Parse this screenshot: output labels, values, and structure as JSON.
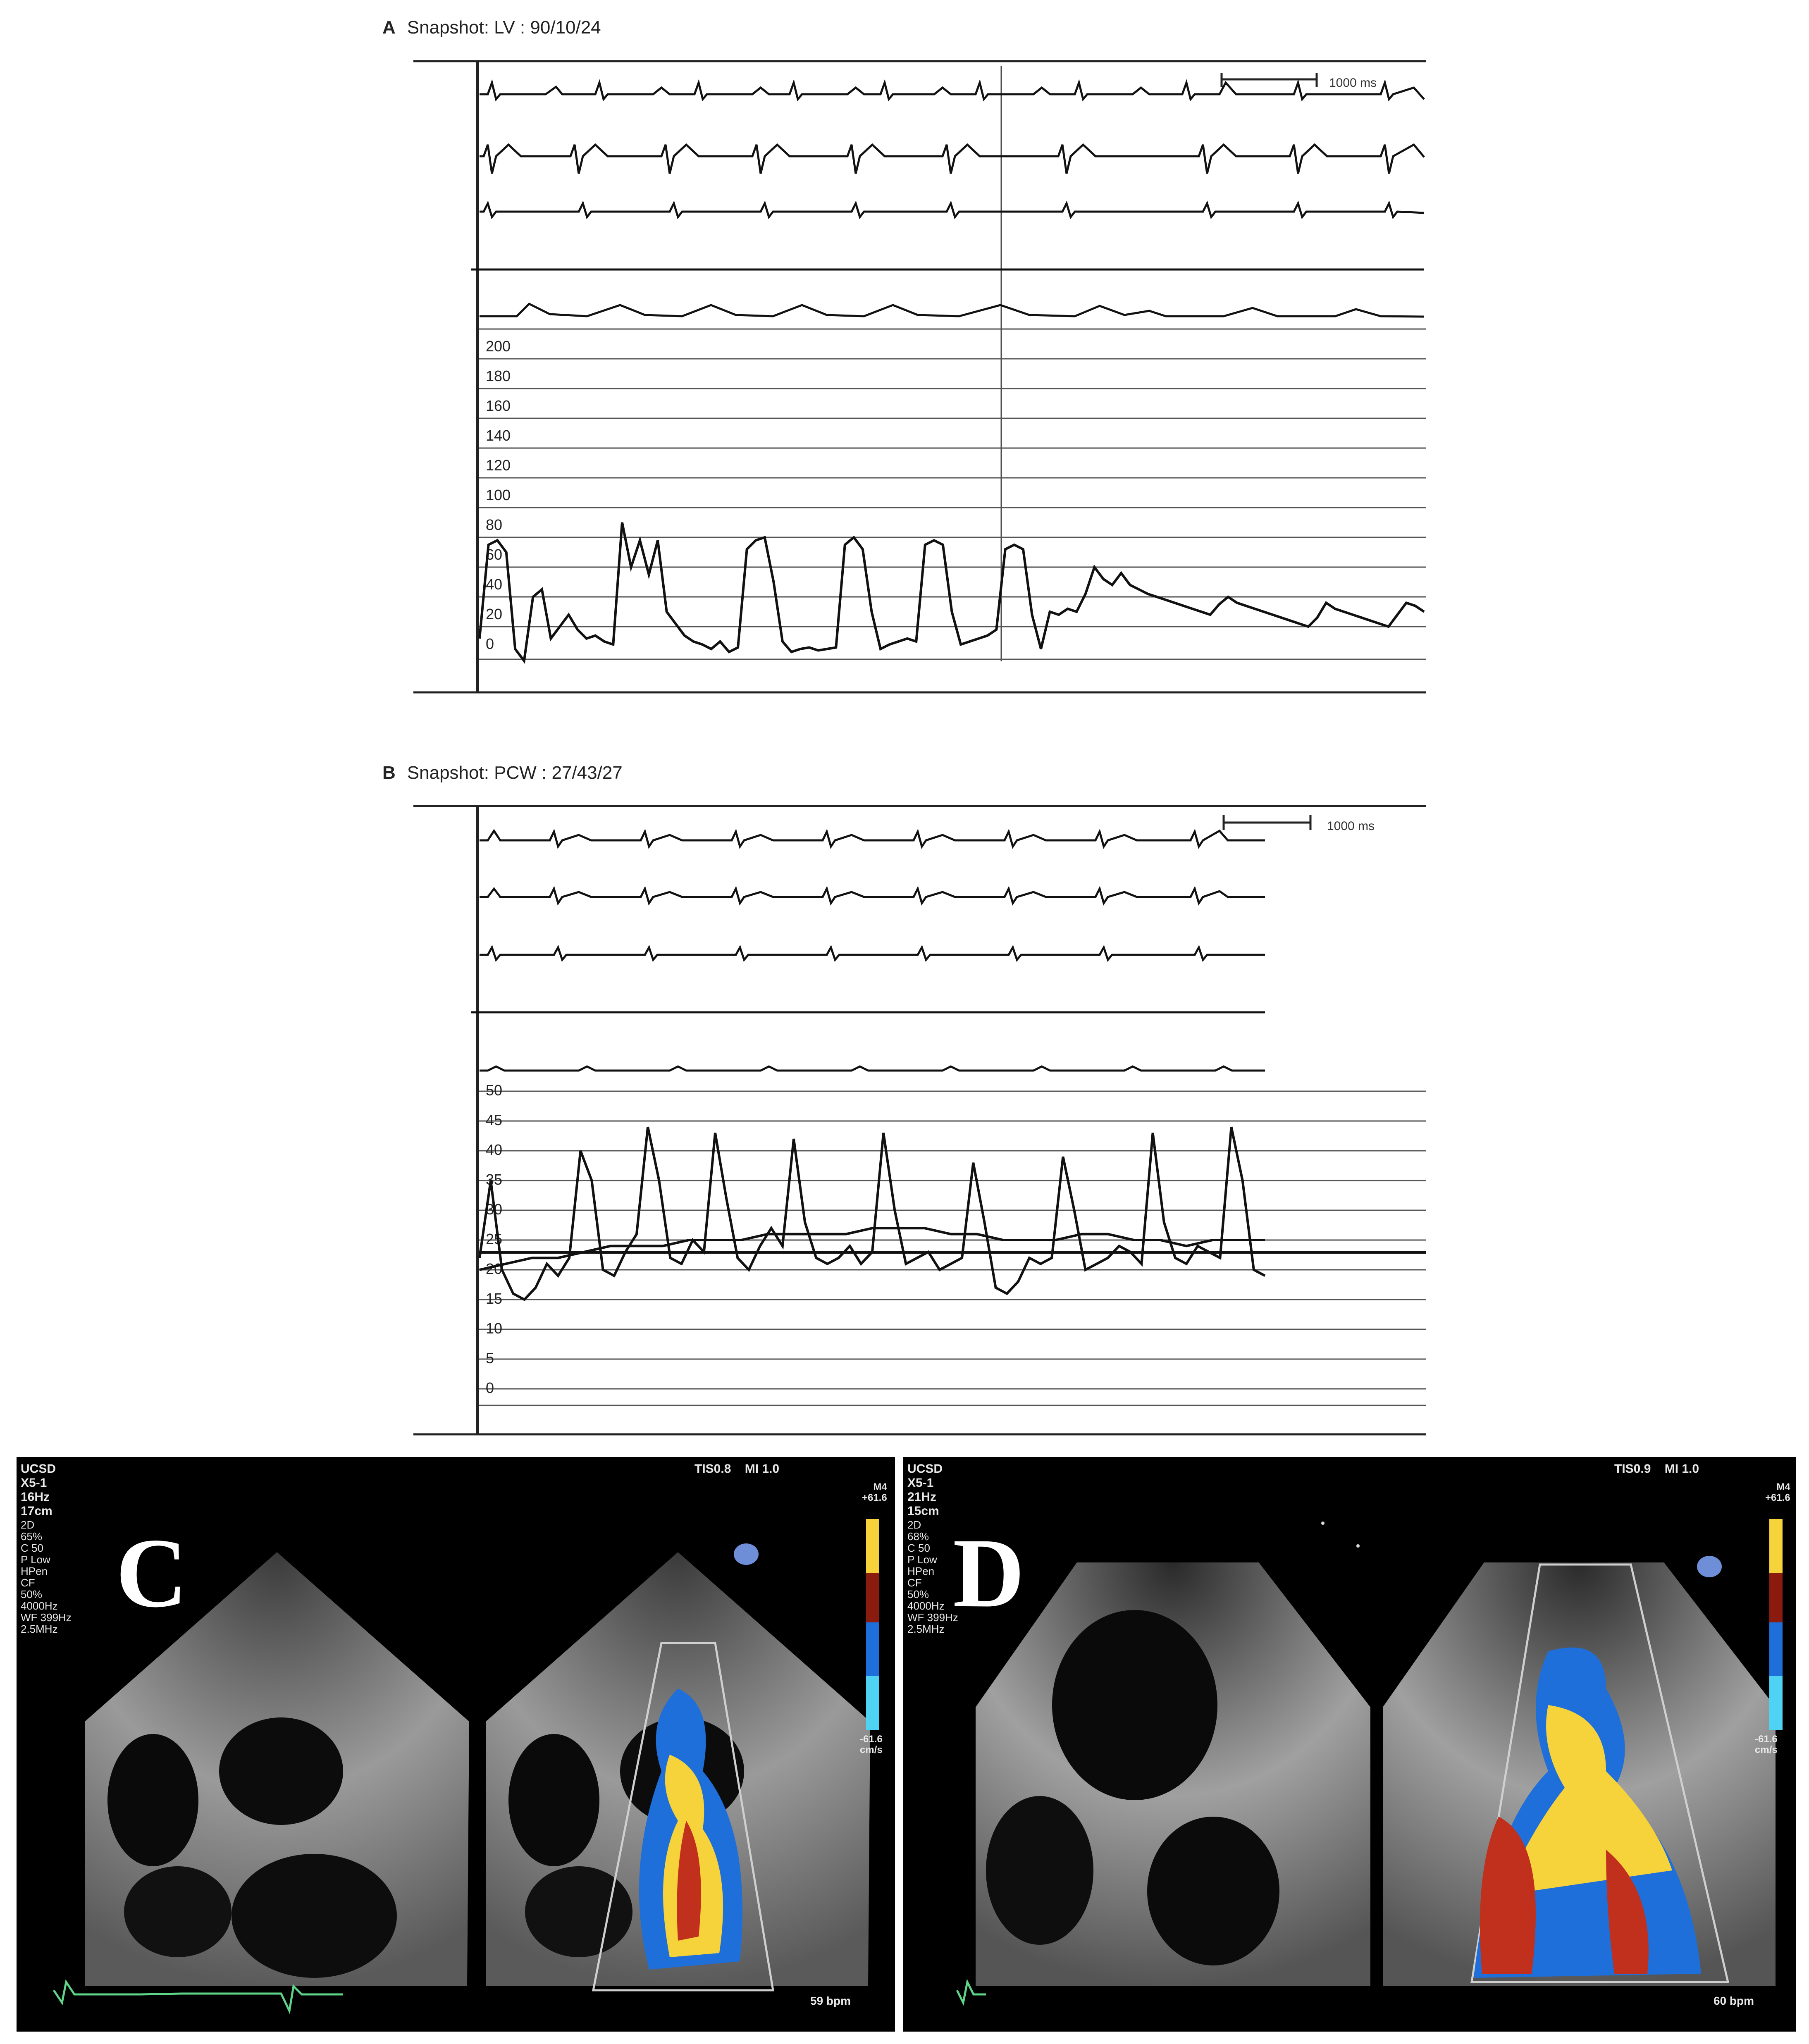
{
  "panel_a": {
    "letter": "A",
    "title": "Snapshot:  LV : 90/10/24",
    "scale_label": "1000 ms",
    "scale_ticks": [
      "200",
      "180",
      "160",
      "140",
      "120",
      "100",
      "80",
      "60",
      "40",
      "20",
      "0"
    ],
    "pressure_trace_y": [
      12,
      75,
      78,
      70,
      5,
      -3,
      40,
      45,
      12,
      20,
      28,
      18,
      12,
      14,
      10,
      8,
      90,
      60,
      78,
      55,
      78,
      30,
      22,
      14,
      10,
      8,
      5,
      10,
      3,
      6,
      72,
      78,
      80,
      50,
      10,
      3,
      5,
      6,
      4,
      5,
      6,
      75,
      80,
      72,
      30,
      5,
      8,
      10,
      12,
      10,
      75,
      78,
      75,
      30,
      8,
      10,
      12,
      14,
      18,
      72,
      75,
      72,
      28,
      5,
      30,
      28,
      32,
      30,
      42,
      60,
      52,
      48,
      56,
      48,
      45,
      42,
      40,
      38,
      36,
      34,
      32,
      30,
      28,
      35,
      40,
      36,
      34,
      32,
      30,
      28,
      26,
      24,
      22,
      20,
      26,
      36,
      32,
      30,
      28,
      26,
      24,
      22,
      20,
      28,
      36,
      34,
      30
    ]
  },
  "panel_b": {
    "letter": "B",
    "title": "Snapshot:  PCW : 27/43/27",
    "scale_label": "1000 ms",
    "scale_ticks": [
      "50",
      "45",
      "40",
      "35",
      "30",
      "25",
      "20",
      "15",
      "10",
      "5",
      "0"
    ],
    "pressure_trace_y": [
      22,
      35,
      20,
      16,
      15,
      17,
      21,
      19,
      22,
      40,
      35,
      20,
      19,
      23,
      26,
      44,
      35,
      22,
      21,
      25,
      23,
      43,
      32,
      22,
      20,
      24,
      27,
      24,
      42,
      28,
      22,
      21,
      22,
      24,
      21,
      23,
      43,
      30,
      21,
      22,
      23,
      20,
      21,
      22,
      38,
      28,
      17,
      16,
      18,
      22,
      21,
      22,
      39,
      30,
      20,
      21,
      22,
      24,
      23,
      21,
      43,
      28,
      22,
      21,
      24,
      23,
      22,
      44,
      35,
      20,
      19
    ],
    "mean_trace_y": [
      20,
      21,
      22,
      22,
      23,
      24,
      24,
      24,
      25,
      25,
      25,
      26,
      26,
      26,
      26,
      27,
      27,
      27,
      26,
      26,
      25,
      25,
      25,
      26,
      26,
      25,
      25,
      24,
      25,
      25,
      25
    ]
  },
  "panel_c": {
    "letter": "C",
    "info_left": "UCSD\nX5-1\n16Hz\n17cm",
    "info_left2": "2D\n65%\nC 50\nP Low\nHPen\nCF\n50%\n4000Hz\nWF 399Hz\n2.5MHz",
    "info_right": "TIS0.8    MI 1.0",
    "scale_top": "M4\n+61.6",
    "scale_bottom": "-61.6\ncm/s",
    "bpm": "59 bpm"
  },
  "panel_d": {
    "letter": "D",
    "info_left": "UCSD\nX5-1\n21Hz\n15cm",
    "info_left2": "2D\n68%\nC 50\nP Low\nHPen\nCF\n50%\n4000Hz\nWF 399Hz\n2.5MHz",
    "info_right": "TIS0.9    MI 1.0",
    "scale_top": "M4\n+61.6",
    "scale_bottom": "-61.6\ncm/s",
    "bpm": "60 bpm"
  },
  "colors": {
    "trace": "#111111",
    "grid": "#555555",
    "echo_bg": "#000000",
    "doppler_blue": "#1e6fd9",
    "doppler_red": "#c0301c",
    "doppler_yellow": "#f6d23b"
  }
}
